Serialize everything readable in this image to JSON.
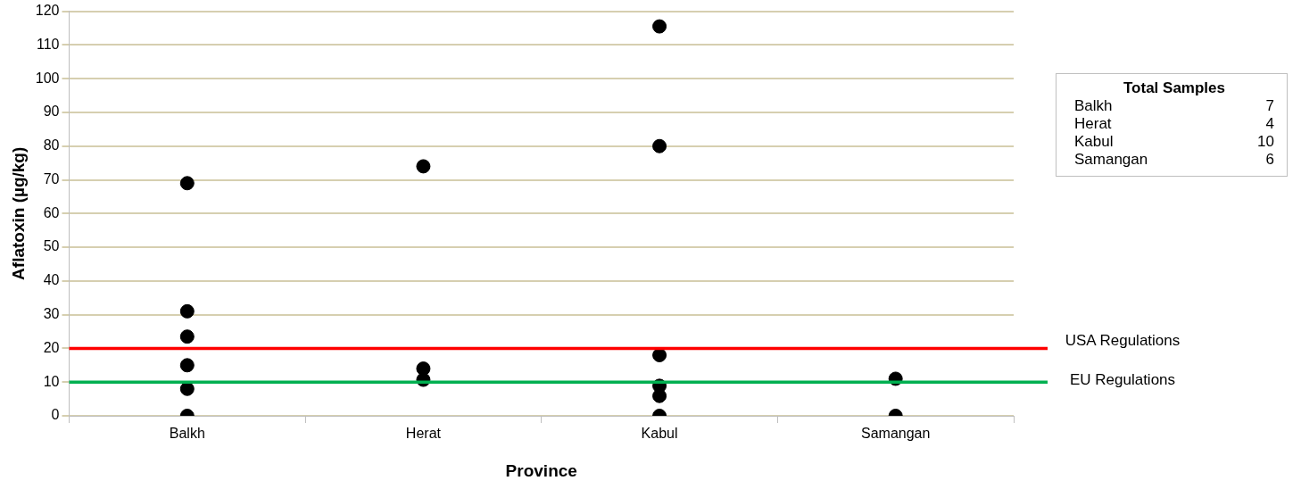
{
  "chart_data": {
    "type": "scatter",
    "xlabel": "Province",
    "ylabel": "Aflatoxin (µg/kg)",
    "categories": [
      "Balkh",
      "Herat",
      "Kabul",
      "Samangan"
    ],
    "series": [
      {
        "color": "#000000",
        "x": [
          "Balkh",
          "Balkh",
          "Balkh",
          "Balkh",
          "Balkh",
          "Balkh",
          "Herat",
          "Herat",
          "Herat",
          "Kabul",
          "Kabul",
          "Kabul",
          "Kabul",
          "Kabul",
          "Kabul",
          "Samangan",
          "Samangan"
        ],
        "values": [
          69,
          31,
          23.5,
          15,
          8,
          0,
          74,
          14,
          10.7,
          115.5,
          80,
          18,
          8.9,
          5.9,
          0,
          11,
          0
        ]
      }
    ],
    "ylim": [
      0,
      120
    ],
    "yticks": [
      0,
      10,
      20,
      30,
      40,
      50,
      60,
      70,
      80,
      90,
      100,
      110,
      120
    ],
    "grid": "y",
    "legend": false,
    "marker": "circle",
    "ref_lines": [
      {
        "axis": "y",
        "value": 20,
        "label": "USA Regulations",
        "color": "#ff0000"
      },
      {
        "axis": "y",
        "value": 10,
        "label": "EU Regulations",
        "color": "#00b050"
      }
    ],
    "annotations": [
      "Total Samples",
      "Balkh",
      "7",
      "Herat",
      "4",
      "Kabul",
      "10",
      "Samangan",
      "6"
    ]
  }
}
